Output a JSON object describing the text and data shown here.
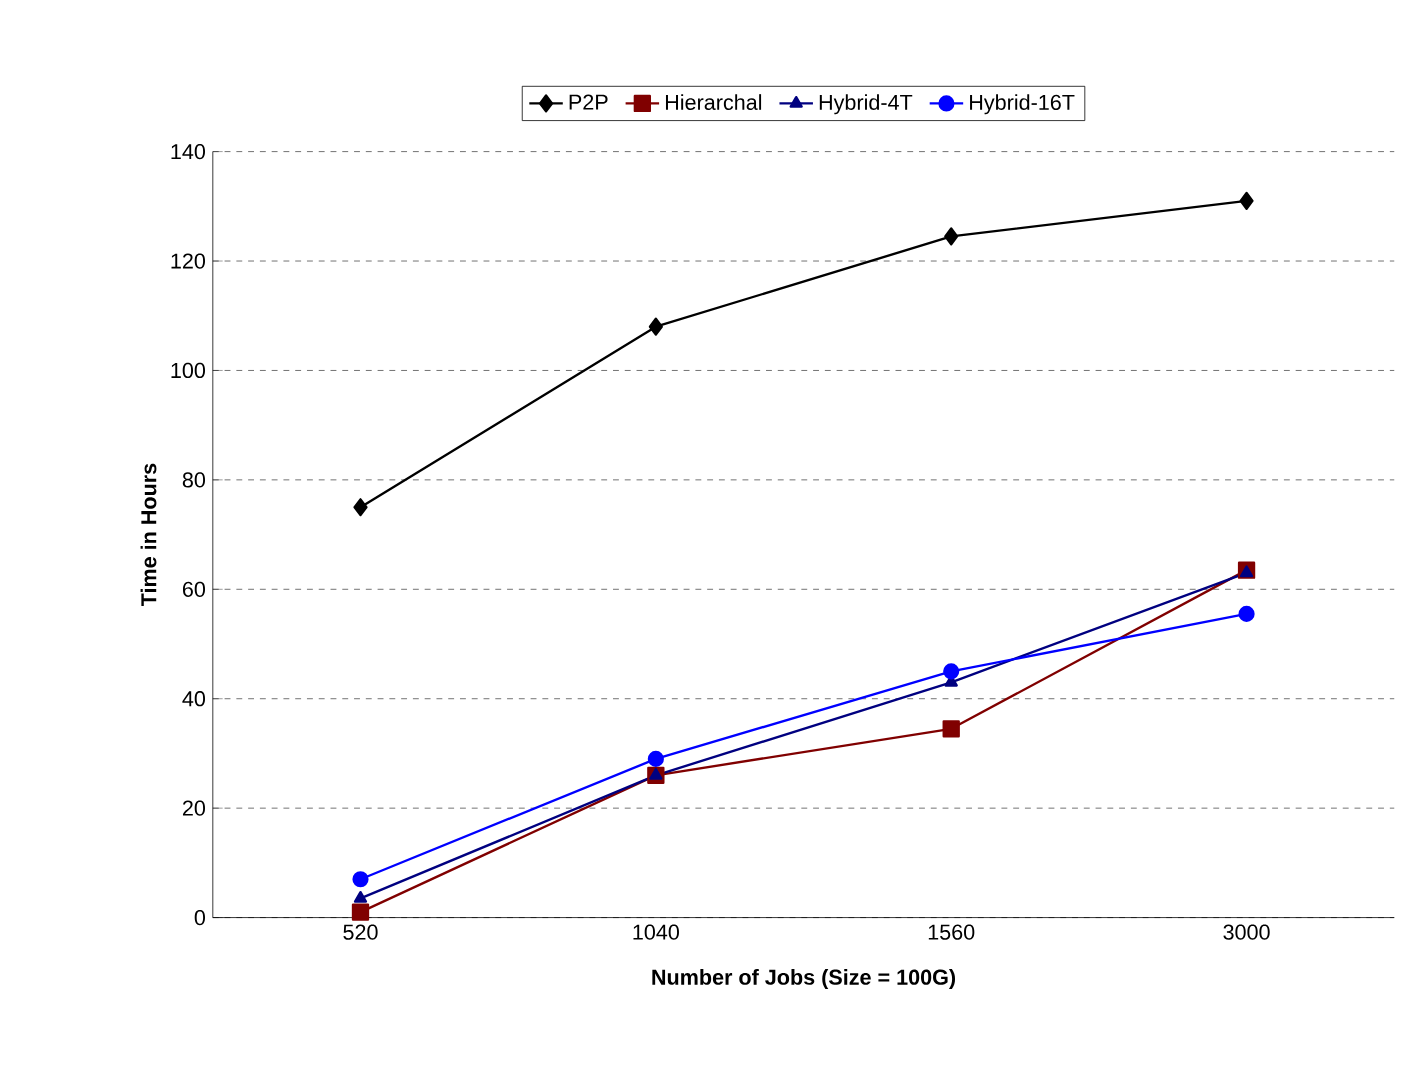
{
  "chart_data": {
    "type": "line",
    "xlabel": "Number of Jobs (Size = 100G)",
    "ylabel": "Time in Hours",
    "categories": [
      "520",
      "1040",
      "1560",
      "3000"
    ],
    "series": [
      {
        "name": "P2P",
        "color": "#000000",
        "marker": "diamond",
        "values": [
          75,
          108,
          124.5,
          131
        ]
      },
      {
        "name": "Hierarchal",
        "color": "#800000",
        "marker": "square",
        "values": [
          1,
          26,
          34.5,
          63.5
        ]
      },
      {
        "name": "Hybrid-4T",
        "color": "#000080",
        "marker": "triangle",
        "values": [
          3.5,
          26,
          43,
          63
        ]
      },
      {
        "name": "Hybrid-16T",
        "color": "#0000ff",
        "marker": "circle",
        "values": [
          7,
          29,
          45,
          55.5
        ]
      }
    ],
    "ylim": [
      0,
      140
    ],
    "yticks": [
      0,
      20,
      40,
      60,
      80,
      100,
      120,
      140
    ],
    "grid": "y",
    "legend": "top",
    "line_style": "solid"
  }
}
